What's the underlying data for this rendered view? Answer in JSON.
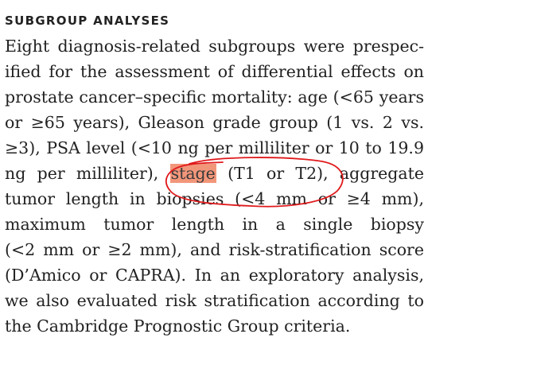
{
  "section": {
    "heading": "SUBGROUP ANALYSES",
    "lines": [
      "Eight diagnosis-related subgroups were prespec-",
      "ified for the assessment of differential effects on",
      "prostate cancer–specific mortality: age (<65 years",
      "or ≥65 years), Gleason grade group (1 vs. 2 vs.",
      "≥3), PSA level (<10 ng per milliliter or 10 to 19.9"
    ],
    "line6": {
      "before": "ng per milliliter),",
      "highlight": "stage",
      "after": "(T1 or T2), aggregate"
    },
    "lines_after": [
      "tumor length in biopsies (<4 mm or ≥4 mm),",
      "maximum tumor length in a single biopsy",
      "(<2 mm or ≥2 mm), and risk-stratification score",
      "(D’Amico or CAPRA). In an exploratory analysis,",
      "we also evaluated risk stratification according to",
      "the Cambridge Prognostic Group criteria."
    ]
  },
  "annotation": {
    "color": "#e0191b",
    "highlight_color": "#f2967a"
  }
}
